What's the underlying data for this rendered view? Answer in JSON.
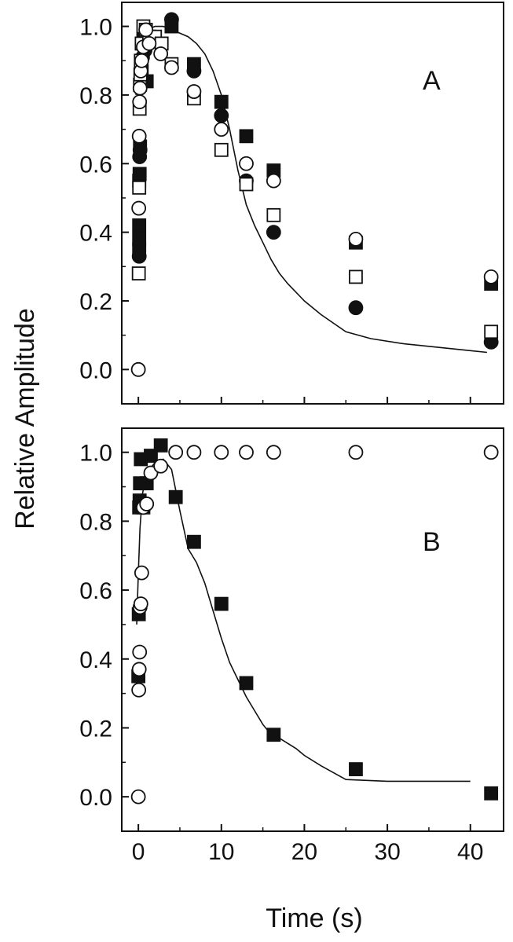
{
  "chart_data": [
    {
      "type": "scatter",
      "panel_label": "A",
      "xlabel": "",
      "ylabel": "Relative Amplitude",
      "xlim": [
        -2,
        44
      ],
      "ylim": [
        -0.1,
        1.07
      ],
      "x_ticks": [
        0,
        10,
        20,
        30,
        40
      ],
      "x_tick_labels": [
        "",
        "",
        "",
        "",
        ""
      ],
      "y_ticks": [
        0.0,
        0.2,
        0.4,
        0.6,
        0.8,
        1.0
      ],
      "y_tick_labels": [
        "0.0",
        "0.2",
        "0.4",
        "0.6",
        "0.8",
        "1.0"
      ],
      "series": [
        {
          "marker": "filled-square",
          "x": [
            0.1,
            0.1,
            0.1,
            0.1,
            0.15,
            0.2,
            0.3,
            0.4,
            0.6,
            1.0,
            4.0,
            6.7,
            10.0,
            13.0,
            16.3,
            26.2,
            42.5
          ],
          "y": [
            0.35,
            0.38,
            0.42,
            0.55,
            0.57,
            0.65,
            0.84,
            0.87,
            0.96,
            0.84,
            1.0,
            0.89,
            0.78,
            0.68,
            0.58,
            0.37,
            0.25
          ]
        },
        {
          "marker": "filled-circle",
          "x": [
            0.1,
            0.15,
            0.2,
            0.3,
            0.5,
            0.8,
            4.0,
            6.7,
            10.0,
            13.0,
            16.3,
            26.2,
            42.5
          ],
          "y": [
            0.33,
            0.62,
            0.64,
            0.84,
            0.91,
            0.93,
            1.02,
            0.87,
            0.74,
            0.55,
            0.4,
            0.18,
            0.08
          ]
        },
        {
          "marker": "open-square",
          "x": [
            0.05,
            0.1,
            0.15,
            0.2,
            0.25,
            0.3,
            0.4,
            0.6,
            0.9,
            1.3,
            2.0,
            2.8,
            4.0,
            6.7,
            10.0,
            13.0,
            16.3,
            26.2,
            42.5
          ],
          "y": [
            0.28,
            0.53,
            0.76,
            0.83,
            0.86,
            0.9,
            0.95,
            1.0,
            0.99,
            0.97,
            0.97,
            0.95,
            0.89,
            0.79,
            0.64,
            0.54,
            0.45,
            0.27,
            0.11
          ]
        },
        {
          "marker": "open-circle",
          "x": [
            0.0,
            0.05,
            0.1,
            0.15,
            0.2,
            0.3,
            0.4,
            0.6,
            0.9,
            1.3,
            2.7,
            4.0,
            6.7,
            10.0,
            13.0,
            16.3,
            26.2,
            42.5
          ],
          "y": [
            0.0,
            0.47,
            0.68,
            0.78,
            0.82,
            0.87,
            0.9,
            0.94,
            0.99,
            0.95,
            0.92,
            0.88,
            0.81,
            0.7,
            0.6,
            0.55,
            0.38,
            0.27
          ]
        }
      ],
      "fit_line": {
        "x": [
          -0.3,
          0.0,
          0.3,
          0.6,
          1.0,
          2.0,
          3.0,
          4.0,
          5.0,
          6.0,
          7.0,
          8.0,
          9.0,
          10.0,
          11.0,
          12.0,
          13.0,
          14.0,
          15.0,
          16.0,
          17.0,
          18.0,
          20.0,
          22.0,
          25.0,
          28.0,
          32.0,
          36.0,
          40.0,
          42.0
        ],
        "y": [
          0.8,
          0.86,
          0.93,
          0.97,
          0.99,
          1.0,
          1.0,
          0.99,
          0.98,
          0.97,
          0.95,
          0.92,
          0.87,
          0.8,
          0.7,
          0.58,
          0.48,
          0.42,
          0.37,
          0.32,
          0.28,
          0.25,
          0.2,
          0.16,
          0.11,
          0.09,
          0.075,
          0.065,
          0.055,
          0.05
        ]
      }
    },
    {
      "type": "scatter",
      "panel_label": "B",
      "xlabel": "Time (s)",
      "ylabel": "",
      "xlim": [
        -2,
        44
      ],
      "ylim": [
        -0.1,
        1.07
      ],
      "x_ticks": [
        0,
        10,
        20,
        30,
        40
      ],
      "x_tick_labels": [
        "0",
        "10",
        "20",
        "30",
        "40"
      ],
      "y_ticks": [
        0.0,
        0.2,
        0.4,
        0.6,
        0.8,
        1.0
      ],
      "y_tick_labels": [
        "0.0",
        "0.2",
        "0.4",
        "0.6",
        "0.8",
        "1.0"
      ],
      "series": [
        {
          "marker": "filled-square",
          "x": [
            0.0,
            0.05,
            0.1,
            0.15,
            0.2,
            0.3,
            0.6,
            1.0,
            1.5,
            2.7,
            4.5,
            6.7,
            10.0,
            13.0,
            16.3,
            26.2,
            42.5
          ],
          "y": [
            0.35,
            0.53,
            0.84,
            0.86,
            0.91,
            0.98,
            0.84,
            0.91,
            0.99,
            1.02,
            0.87,
            0.74,
            0.56,
            0.33,
            0.18,
            0.08,
            0.01
          ]
        },
        {
          "marker": "open-circle",
          "x": [
            0.0,
            0.05,
            0.1,
            0.15,
            0.2,
            0.3,
            0.4,
            0.6,
            1.0,
            1.5,
            2.7,
            4.5,
            6.7,
            10.0,
            13.0,
            16.3,
            26.2,
            42.5
          ],
          "y": [
            0.0,
            0.31,
            0.37,
            0.42,
            0.55,
            0.56,
            0.65,
            0.84,
            0.85,
            0.94,
            0.96,
            1.0,
            1.0,
            1.0,
            1.0,
            1.0,
            1.0,
            1.0
          ]
        }
      ],
      "fit_line": {
        "x": [
          -0.2,
          0.0,
          0.2,
          0.5,
          1.0,
          2.0,
          3.0,
          4.0,
          5.0,
          6.0,
          7.0,
          8.0,
          9.0,
          10.0,
          11.0,
          12.0,
          13.0,
          14.0,
          15.0,
          16.0,
          17.0,
          18.0,
          19.0,
          20.0,
          22.0,
          25.0,
          30.0,
          35.0,
          40.0
        ],
        "y": [
          0.5,
          0.65,
          0.78,
          0.88,
          0.94,
          0.97,
          0.98,
          0.95,
          0.83,
          0.72,
          0.68,
          0.62,
          0.54,
          0.46,
          0.39,
          0.34,
          0.29,
          0.25,
          0.21,
          0.18,
          0.17,
          0.155,
          0.14,
          0.12,
          0.09,
          0.05,
          0.045,
          0.045,
          0.045
        ]
      }
    }
  ]
}
